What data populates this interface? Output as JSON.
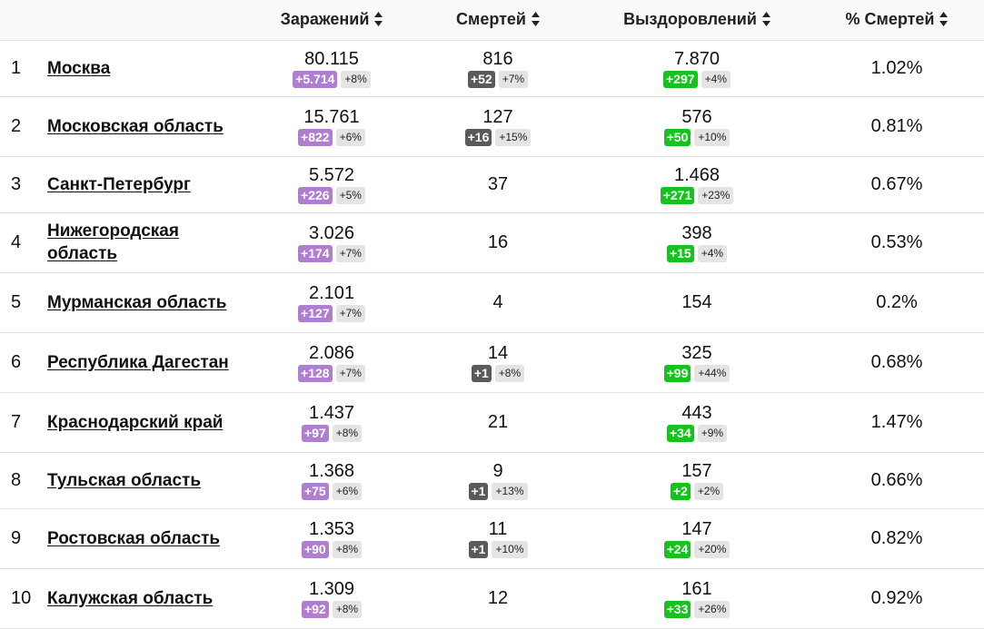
{
  "header": {
    "rank": "",
    "region": "",
    "infections": "Заражений",
    "deaths": "Смертей",
    "recoveries": "Выздоровлений",
    "death_pct": "% Смертей"
  },
  "rows": [
    {
      "rank": "1",
      "region": "Москва",
      "inf": "80.115",
      "inf_delta": "+5.714",
      "inf_pct": "+8%",
      "deaths": "816",
      "death_delta": "+52",
      "death_pct_change": "+7%",
      "rec": "7.870",
      "rec_delta": "+297",
      "rec_pct": "+4%",
      "death_rate": "1.02%"
    },
    {
      "rank": "2",
      "region": "Московская область",
      "inf": "15.761",
      "inf_delta": "+822",
      "inf_pct": "+6%",
      "deaths": "127",
      "death_delta": "+16",
      "death_pct_change": "+15%",
      "rec": "576",
      "rec_delta": "+50",
      "rec_pct": "+10%",
      "death_rate": "0.81%"
    },
    {
      "rank": "3",
      "region": "Санкт-Петербург",
      "inf": "5.572",
      "inf_delta": "+226",
      "inf_pct": "+5%",
      "deaths": "37",
      "death_delta": "",
      "death_pct_change": "",
      "rec": "1.468",
      "rec_delta": "+271",
      "rec_pct": "+23%",
      "death_rate": "0.67%"
    },
    {
      "rank": "4",
      "region": "Нижегородская область",
      "inf": "3.026",
      "inf_delta": "+174",
      "inf_pct": "+7%",
      "deaths": "16",
      "death_delta": "",
      "death_pct_change": "",
      "rec": "398",
      "rec_delta": "+15",
      "rec_pct": "+4%",
      "death_rate": "0.53%"
    },
    {
      "rank": "5",
      "region": "Мурманская область",
      "inf": "2.101",
      "inf_delta": "+127",
      "inf_pct": "+7%",
      "deaths": "4",
      "death_delta": "",
      "death_pct_change": "",
      "rec": "154",
      "rec_delta": "",
      "rec_pct": "",
      "death_rate": "0.2%"
    },
    {
      "rank": "6",
      "region": "Республика Дагестан",
      "inf": "2.086",
      "inf_delta": "+128",
      "inf_pct": "+7%",
      "deaths": "14",
      "death_delta": "+1",
      "death_pct_change": "+8%",
      "rec": "325",
      "rec_delta": "+99",
      "rec_pct": "+44%",
      "death_rate": "0.68%"
    },
    {
      "rank": "7",
      "region": "Краснодарский край",
      "inf": "1.437",
      "inf_delta": "+97",
      "inf_pct": "+8%",
      "deaths": "21",
      "death_delta": "",
      "death_pct_change": "",
      "rec": "443",
      "rec_delta": "+34",
      "rec_pct": "+9%",
      "death_rate": "1.47%"
    },
    {
      "rank": "8",
      "region": "Тульская область",
      "inf": "1.368",
      "inf_delta": "+75",
      "inf_pct": "+6%",
      "deaths": "9",
      "death_delta": "+1",
      "death_pct_change": "+13%",
      "rec": "157",
      "rec_delta": "+2",
      "rec_pct": "+2%",
      "death_rate": "0.66%"
    },
    {
      "rank": "9",
      "region": "Ростовская область",
      "inf": "1.353",
      "inf_delta": "+90",
      "inf_pct": "+8%",
      "deaths": "11",
      "death_delta": "+1",
      "death_pct_change": "+10%",
      "rec": "147",
      "rec_delta": "+24",
      "rec_pct": "+20%",
      "death_rate": "0.82%"
    },
    {
      "rank": "10",
      "region": "Калужская область",
      "inf": "1.309",
      "inf_delta": "+92",
      "inf_pct": "+8%",
      "deaths": "12",
      "death_delta": "",
      "death_pct_change": "",
      "rec": "161",
      "rec_delta": "+33",
      "rec_pct": "+26%",
      "death_rate": "0.92%"
    }
  ],
  "colors": {
    "infections_badge": "#b07ecf",
    "deaths_badge": "#5a5a5a",
    "recoveries_badge": "#18c21e",
    "percent_badge": "#e4e4e4"
  },
  "icons": {
    "sort": "sort-updown-icon"
  }
}
